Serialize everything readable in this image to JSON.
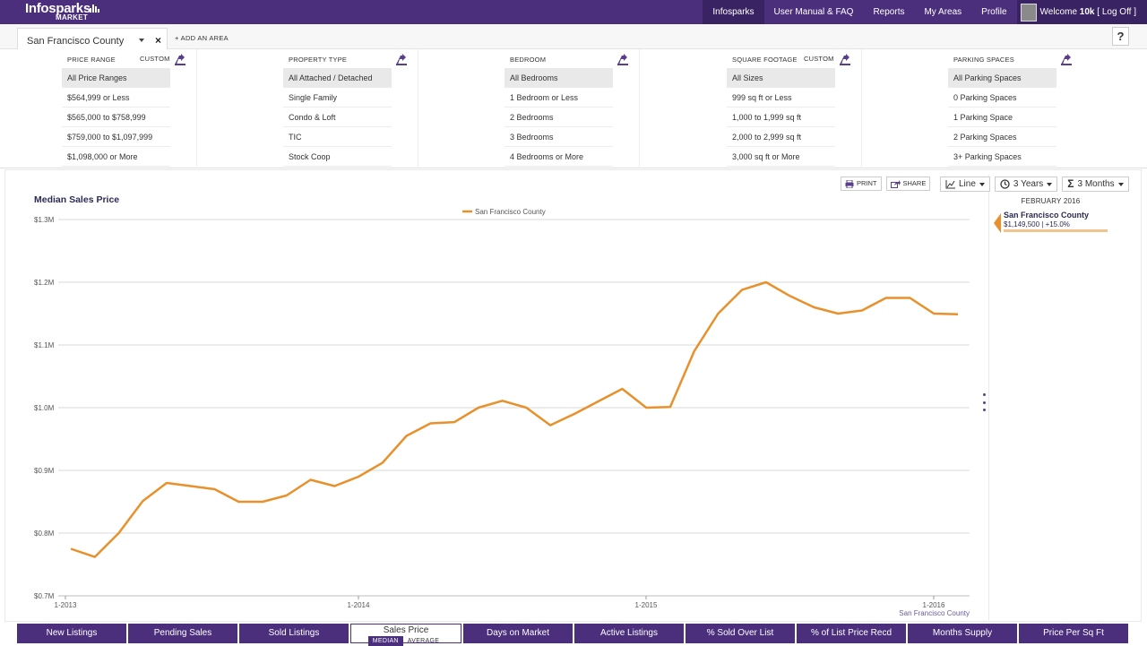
{
  "header": {
    "logo_text_1": "Info",
    "logo_text_2": "sparks",
    "logo_sub": "MARKET",
    "nav": [
      "Infosparks",
      "User Manual & FAQ",
      "Reports",
      "My Areas",
      "Profile"
    ],
    "welcome": "Welcome",
    "username": "10k",
    "logoff": "[ Log Off ]"
  },
  "area": {
    "selected": "San Francisco County",
    "add_label": "+ ADD AN AREA",
    "help": "?"
  },
  "filters": [
    {
      "title": "PRICE RANGE",
      "custom": "CUSTOM",
      "options": [
        "All Price Ranges",
        "$564,999 or Less",
        "$565,000 to $758,999",
        "$759,000 to $1,097,999",
        "$1,098,000 or More"
      ]
    },
    {
      "title": "PROPERTY TYPE",
      "custom": "",
      "options": [
        "All Attached / Detached",
        "Single Family",
        "Condo & Loft",
        "TIC",
        "Stock Coop"
      ]
    },
    {
      "title": "BEDROOM",
      "custom": "",
      "options": [
        "All Bedrooms",
        "1 Bedroom or Less",
        "2 Bedrooms",
        "3 Bedrooms",
        "4 Bedrooms or More"
      ]
    },
    {
      "title": "SQUARE FOOTAGE",
      "custom": "CUSTOM",
      "options": [
        "All Sizes",
        "999 sq ft or Less",
        "1,000 to 1,999 sq ft",
        "2,000 to 2,999 sq ft",
        "3,000 sq ft or More"
      ]
    },
    {
      "title": "PARKING SPACES",
      "custom": "",
      "options": [
        "All Parking Spaces",
        "0 Parking Spaces",
        "1 Parking Space",
        "2 Parking Spaces",
        "3+ Parking Spaces"
      ]
    }
  ],
  "toolbar": {
    "print": "PRINT",
    "share": "SHARE",
    "chart_type": "Line",
    "range": "3 Years",
    "period": "3 Months"
  },
  "side": {
    "date": "FEBRUARY 2016",
    "name": "San Francisco County",
    "value": "$1,149,500 | +15.0%"
  },
  "tabs": [
    "New Listings",
    "Pending Sales",
    "Sold Listings",
    "Sales Price",
    "Days on Market",
    "Active Listings",
    "% Sold Over List",
    "% of List Price Recd",
    "Months Supply",
    "Price Per Sq Ft"
  ],
  "active_tab_sub": {
    "median": "MEDIAN",
    "average": "AVERAGE"
  },
  "colors": {
    "brand": "#4b2f7d",
    "line": "#e8912c"
  },
  "chart_data": {
    "type": "line",
    "title": "Median Sales Price",
    "legend": "San Francisco County",
    "source_label": "San Francisco County",
    "y_ticks": [
      "$0.7M",
      "$0.8M",
      "$0.9M",
      "$1.0M",
      "$1.1M",
      "$1.2M",
      "$1.3M"
    ],
    "ylim": [
      0.7,
      1.3
    ],
    "x_ticks": [
      "1-2013",
      "1-2014",
      "1-2015",
      "1-2016"
    ],
    "series": [
      {
        "name": "San Francisco County",
        "values": [
          0.775,
          0.762,
          0.8,
          0.851,
          0.88,
          0.875,
          0.87,
          0.85,
          0.85,
          0.86,
          0.885,
          0.875,
          0.89,
          0.912,
          0.955,
          0.975,
          0.977,
          1.0,
          1.011,
          1.0,
          0.972,
          0.99,
          1.01,
          1.03,
          1.0,
          1.001,
          1.09,
          1.15,
          1.188,
          1.2,
          1.178,
          1.16,
          1.15,
          1.155,
          1.175,
          1.175,
          1.15,
          1.149
        ]
      }
    ]
  }
}
